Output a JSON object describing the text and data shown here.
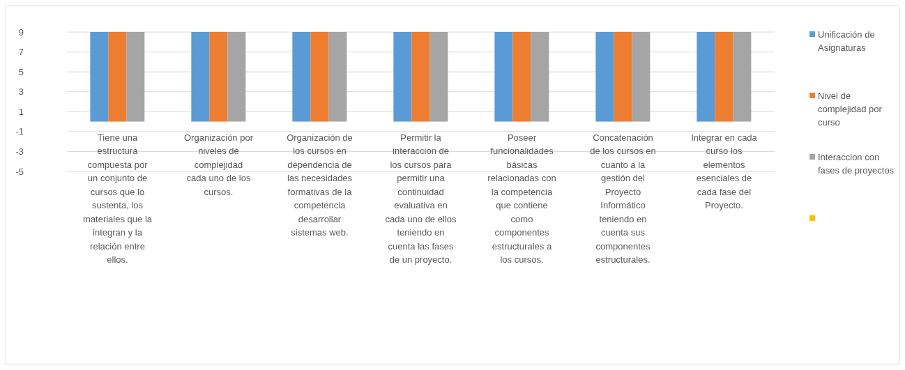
{
  "chart_data": {
    "type": "bar",
    "categories": [
      "Tiene una estructura compuesta por un conjunto de cursos que lo sustenta, los materiales que la integran y la relación entre ellos.",
      "Organización por niveles de complejidad cada uno de los cursos.",
      "Organización de los cursos en dependencia de las necesidades formativas de la competencia desarrollar sistemas web.",
      "Permitir la interacción de los cursos para permitir una continuidad evaluativa en cada uno de ellos teniendo en cuenta las fases de un proyecto.",
      "Poseer funcionalidades básicas relacionadas con la competencia que contiene como componentes estructurales a los cursos.",
      "Concatenación de los cursos en cuanto a la gestión del Proyecto Informático teniendo en cuenta sus componentes estructurales.",
      "Integrar en cada curso los elementos esenciales de cada fase del Proyecto."
    ],
    "series": [
      {
        "name": "Unificación de Asignaturas",
        "color": "#5b9bd5",
        "values": [
          9,
          9,
          9,
          9,
          9,
          9,
          9
        ]
      },
      {
        "name": "Nivel de complejidad por curso",
        "color": "#ed7d31",
        "values": [
          9,
          9,
          9,
          9,
          9,
          9,
          9
        ]
      },
      {
        "name": "Interaccion con fases de proyectos",
        "color": "#a5a5a5",
        "values": [
          9,
          9,
          9,
          9,
          9,
          9,
          9
        ]
      },
      {
        "color": "#ffc000",
        "values": [
          null,
          null,
          null,
          null,
          null,
          null,
          null
        ]
      }
    ],
    "ylim": [
      -5,
      9
    ],
    "yticks": [
      -5,
      -3,
      -1,
      1,
      3,
      5,
      7,
      9
    ],
    "grid": "y",
    "legend": "right"
  }
}
